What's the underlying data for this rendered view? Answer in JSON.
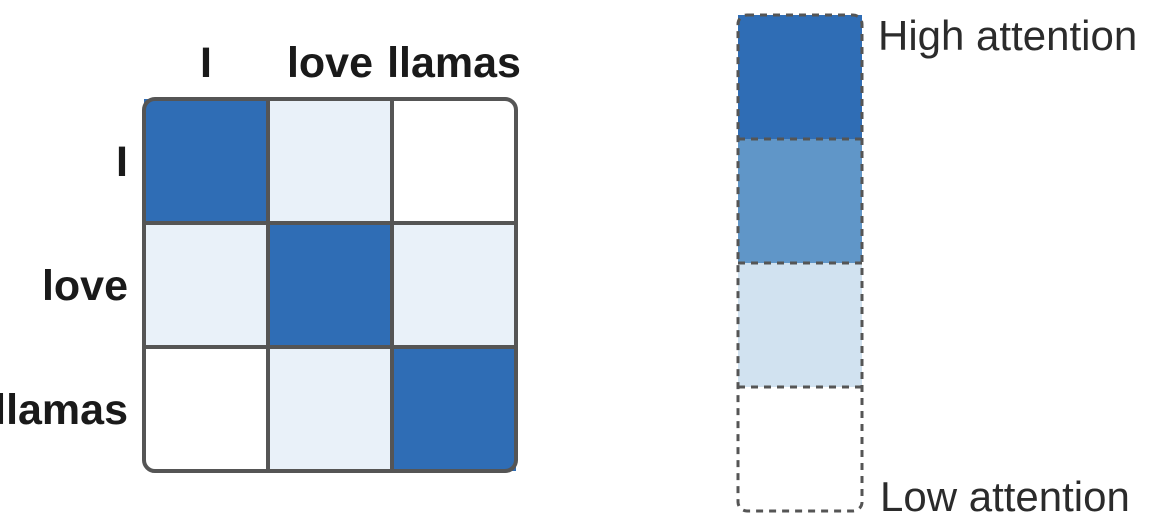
{
  "chart_data": {
    "type": "heatmap",
    "x_tokens": [
      "I",
      "love",
      "llamas"
    ],
    "y_tokens": [
      "I",
      "love",
      "llamas"
    ],
    "levels": [
      {
        "level": 3,
        "color": "#2f6db5"
      },
      {
        "level": 2,
        "color": "#6096c8"
      },
      {
        "level": 1,
        "color": "#d1e2f0"
      },
      {
        "level": 0,
        "color": "#ffffff"
      }
    ],
    "matrix": [
      [
        3,
        0.5,
        0
      ],
      [
        0.5,
        3,
        0.5
      ],
      [
        0,
        0.5,
        3
      ]
    ],
    "cell_colors": {
      "3": "#2f6db5",
      "0.5": "#e9f1f9",
      "0": "#ffffff"
    },
    "legend": {
      "high_label": "High attention",
      "low_label": "Low attention"
    }
  },
  "colors": {
    "grid_line": "#555555",
    "legend_border": "#555555"
  }
}
